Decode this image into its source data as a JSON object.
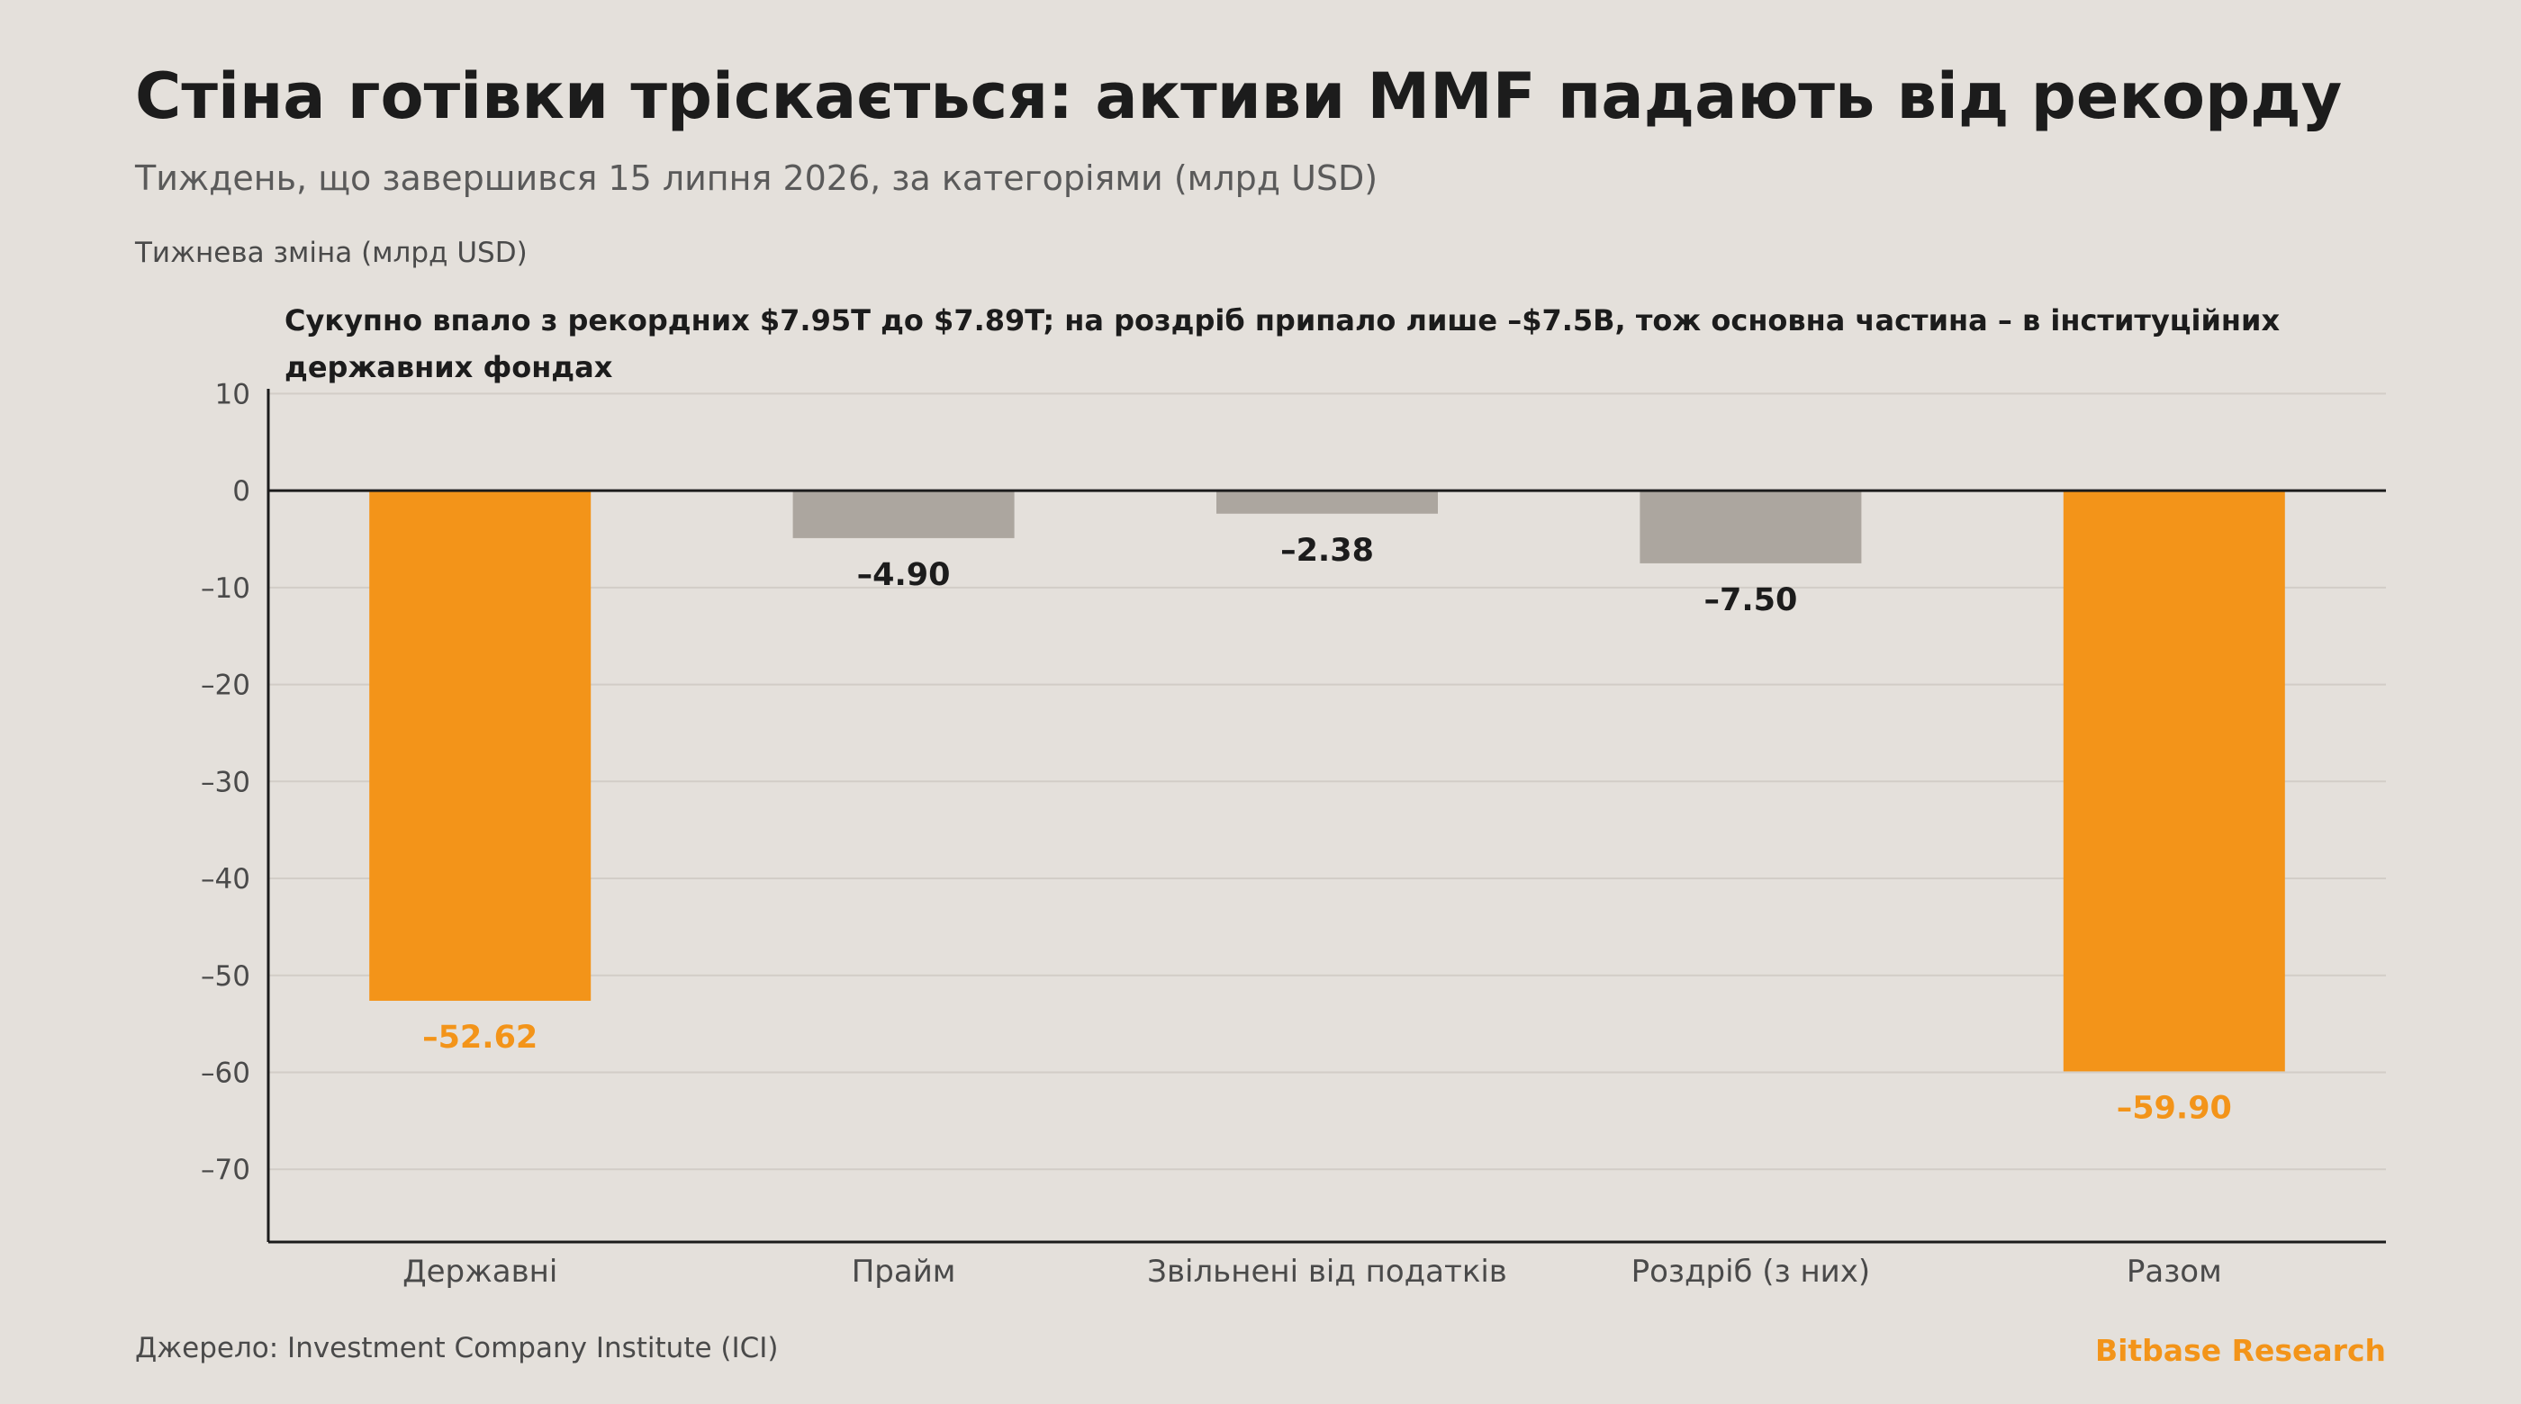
{
  "header": {
    "title": "Стіна готівки тріскається: активи MMF падають від рекорду",
    "subtitle": "Тиждень, що завершився 15 липня 2026, за категоріями (млрд USD)",
    "axis_caption": "Тижнева зміна (млрд USD)",
    "annotation": "Сукупно впало з рекордних $7.95T до $7.89T; на роздріб припало лише –$7.5B, тож основна частина – в інституційних державних фондах"
  },
  "chart_data": {
    "type": "bar",
    "title": "Стіна готівки тріскається: активи MMF падають від рекорду",
    "subtitle": "Тиждень, що завершився 15 липня 2026, за категоріями (млрд USD)",
    "ylabel": "Тижнева зміна (млрд USD)",
    "xlabel": "",
    "categories": [
      "Державні",
      "Прайм",
      "Звільнені від податків",
      "Роздріб (з них)",
      "Разом"
    ],
    "values": [
      -52.62,
      -4.9,
      -2.38,
      -7.5,
      -59.9
    ],
    "value_labels": [
      "–52.62",
      "–4.90",
      "–2.38",
      "–7.50",
      "–59.90"
    ],
    "highlight": [
      true,
      false,
      false,
      false,
      true
    ],
    "ylim": [
      -77.5,
      10.5
    ],
    "yticks": [
      10,
      0,
      -10,
      -20,
      -30,
      -40,
      -50,
      -60,
      -70
    ],
    "ytick_labels": [
      "10",
      "0",
      "–10",
      "–20",
      "–30",
      "–40",
      "–50",
      "–60",
      "–70"
    ],
    "grid": true,
    "zero_line": true,
    "colors": {
      "highlight": "#f39419",
      "default": "#aca69f",
      "highlight_label": "#f39419",
      "default_label": "#1c1c1c",
      "grid": "#d2cdc7",
      "axis": "#1c1c1c"
    }
  },
  "footer": {
    "source": "Джерело: Investment Company Institute (ICI)",
    "brand": "Bitbase Research"
  }
}
